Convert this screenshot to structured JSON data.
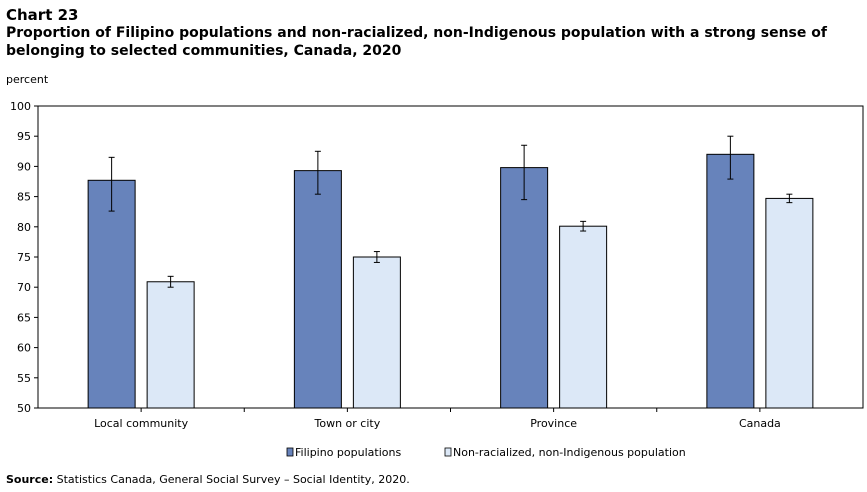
{
  "header": {
    "chart_number": "Chart 23",
    "title": "Proportion of Filipino populations and non-racialized, non-Indigenous population with a strong sense of belonging to selected communities, Canada, 2020"
  },
  "source": {
    "label": "Source:",
    "text": "Statistics Canada, General Social Survey – Social Identity, 2020."
  },
  "chart_data": {
    "type": "bar",
    "ylabel": "percent",
    "xlabel": "",
    "ylim": [
      50,
      100
    ],
    "yticks": [
      50,
      55,
      60,
      65,
      70,
      75,
      80,
      85,
      90,
      95,
      100
    ],
    "grid": false,
    "legend_position": "bottom",
    "categories": [
      "Local community",
      "Town or city",
      "Province",
      "Canada"
    ],
    "series": [
      {
        "name": "Filipino populations",
        "color": "#6783bb",
        "values": [
          87.7,
          89.3,
          89.8,
          92.0
        ],
        "error_low": [
          82.6,
          85.4,
          84.5,
          87.9
        ],
        "error_high": [
          91.5,
          92.5,
          93.5,
          95.0
        ]
      },
      {
        "name": "Non-racialized, non-Indigenous population",
        "color": "#dce8f7",
        "values": [
          70.9,
          75.0,
          80.1,
          84.7
        ],
        "error_low": [
          70.0,
          74.1,
          79.3,
          84.0
        ],
        "error_high": [
          71.8,
          75.9,
          80.9,
          85.4
        ]
      }
    ]
  }
}
